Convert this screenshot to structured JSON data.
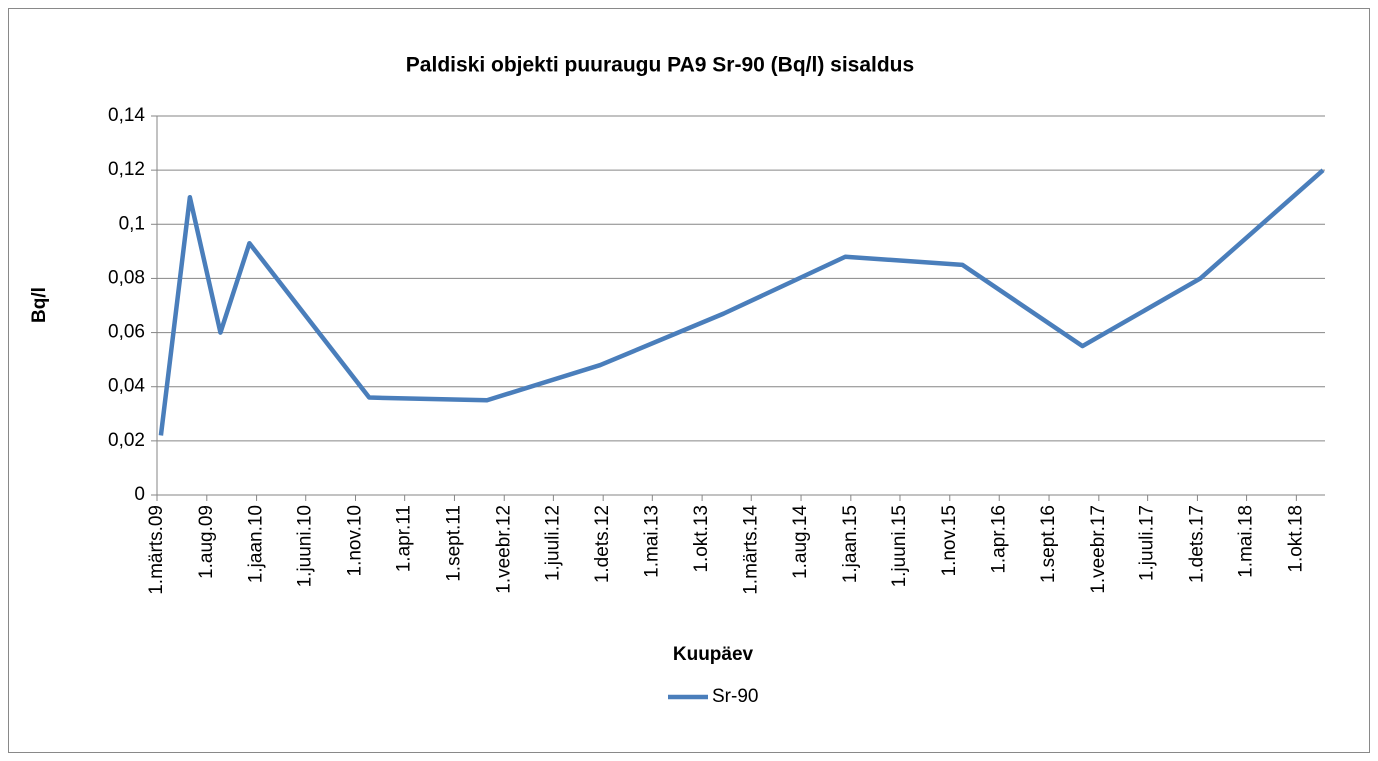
{
  "chart_data": {
    "type": "line",
    "title": "Paldiski objekti puuraugu PA9 Sr-90 (Bq/l) sisaldus",
    "xlabel": "Kuupäev",
    "ylabel": "Bq/l",
    "x": [
      "2009-03-13",
      "2009-06-10",
      "2009-09-12",
      "2009-12-10",
      "2010-12-13",
      "2011-12-10",
      "2012-11-22",
      "2013-12-06",
      "2014-12-15",
      "2015-12-10",
      "2016-12-13",
      "2017-12-10",
      "2018-12-22"
    ],
    "series": [
      {
        "name": "Sr-90",
        "color": "#4a7ebb",
        "values": [
          0.022,
          0.11,
          0.06,
          0.093,
          0.036,
          0.035,
          0.048,
          0.067,
          0.088,
          0.085,
          0.055,
          0.08,
          0.12
        ]
      }
    ],
    "xlim": [
      "2009-03-01",
      "2018-12-28"
    ],
    "xticks": [
      {
        "value": "2009-03-01",
        "label": "1.märts.09"
      },
      {
        "value": "2009-08-01",
        "label": "1.aug.09"
      },
      {
        "value": "2010-01-01",
        "label": "1.jaan.10"
      },
      {
        "value": "2010-06-01",
        "label": "1.juuni.10"
      },
      {
        "value": "2010-11-01",
        "label": "1.nov.10"
      },
      {
        "value": "2011-04-01",
        "label": "1.apr.11"
      },
      {
        "value": "2011-09-01",
        "label": "1.sept.11"
      },
      {
        "value": "2012-02-01",
        "label": "1.veebr.12"
      },
      {
        "value": "2012-07-01",
        "label": "1.juuli.12"
      },
      {
        "value": "2012-12-01",
        "label": "1.dets.12"
      },
      {
        "value": "2013-05-01",
        "label": "1.mai.13"
      },
      {
        "value": "2013-10-01",
        "label": "1.okt.13"
      },
      {
        "value": "2014-03-01",
        "label": "1.märts.14"
      },
      {
        "value": "2014-08-01",
        "label": "1.aug.14"
      },
      {
        "value": "2015-01-01",
        "label": "1.jaan.15"
      },
      {
        "value": "2015-06-01",
        "label": "1.juuni.15"
      },
      {
        "value": "2015-11-01",
        "label": "1.nov.15"
      },
      {
        "value": "2016-04-01",
        "label": "1.apr.16"
      },
      {
        "value": "2016-09-01",
        "label": "1.sept.16"
      },
      {
        "value": "2017-02-01",
        "label": "1.veebr.17"
      },
      {
        "value": "2017-07-01",
        "label": "1.juuli.17"
      },
      {
        "value": "2017-12-01",
        "label": "1.dets.17"
      },
      {
        "value": "2018-05-01",
        "label": "1.mai.18"
      },
      {
        "value": "2018-10-01",
        "label": "1.okt.18"
      }
    ],
    "ylim": [
      0,
      0.14
    ],
    "yticks": [
      0,
      {
        "value": 0.02,
        "label": "0,02"
      },
      {
        "value": 0.04,
        "label": "0,04"
      },
      {
        "value": 0.06,
        "label": "0,06"
      },
      {
        "value": 0.08,
        "label": "0,08"
      },
      {
        "value": 0.1,
        "label": "0,1"
      },
      {
        "value": 0.12,
        "label": "0,12"
      },
      {
        "value": 0.14,
        "label": "0,14"
      }
    ],
    "grid": true,
    "legend": "bottom"
  }
}
